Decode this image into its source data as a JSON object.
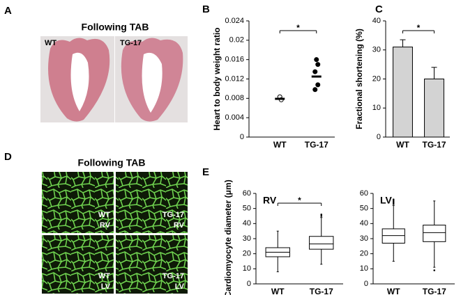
{
  "images": [
    {
      "panel": "A",
      "title": "Following TAB",
      "labels": [
        "WT",
        "TG-17"
      ]
    },
    {
      "panel": "D",
      "title": "Following TAB",
      "labels": [
        [
          "WT",
          "RV"
        ],
        [
          "TG-17",
          "RV"
        ],
        [
          "WT",
          "LV"
        ],
        [
          "TG-17",
          "LV"
        ]
      ]
    }
  ],
  "chart_data": [
    {
      "type": "dot",
      "panel": "B",
      "ylabel": "Heart to body weight ratio",
      "categories": [
        "WT",
        "TG-17"
      ],
      "points": [
        [
          0.0083,
          0.0077
        ],
        [
          0.016,
          0.015,
          0.0135,
          0.0108,
          0.0098
        ]
      ],
      "means": [
        0.0079,
        0.0125
      ],
      "fills": [
        "#ffffff",
        "#000000"
      ],
      "annotation": "*",
      "ylim": [
        0,
        0.024
      ],
      "yticks": [
        0,
        0.004,
        0.008,
        0.012,
        0.016,
        0.02,
        0.024
      ]
    },
    {
      "type": "bar",
      "panel": "C",
      "ylabel": "Fractional shortening (%)",
      "categories": [
        "WT",
        "TG-17"
      ],
      "values": [
        31,
        20
      ],
      "errors": [
        2.5,
        4
      ],
      "color": "#d3d3d3",
      "annotation": "*",
      "ylim": [
        0,
        40
      ],
      "yticks": [
        0,
        10,
        20,
        30,
        40
      ]
    },
    {
      "type": "box",
      "panel": "E",
      "ylabel": "Cardiomyocyte diameter (μm)",
      "title": "RV",
      "categories": [
        "WT",
        "TG-17"
      ],
      "boxes": [
        {
          "min": 8,
          "q1": 18,
          "median": 21,
          "q3": 24,
          "max": 35,
          "outliers": []
        },
        {
          "min": 13,
          "q1": 23,
          "median": 26.5,
          "q3": 31.5,
          "max": 44,
          "outliers": [
            45,
            46
          ]
        }
      ],
      "annotation": "*",
      "ylim": [
        0,
        60
      ],
      "yticks": [
        0,
        10,
        20,
        30,
        40,
        50,
        60
      ]
    },
    {
      "type": "box",
      "title": "LV",
      "categories": [
        "WT",
        "TG-17"
      ],
      "boxes": [
        {
          "min": 15,
          "q1": 27,
          "median": 32,
          "q3": 36.5,
          "max": 52,
          "outliers": [
            53,
            54,
            55,
            56
          ]
        },
        {
          "min": 11,
          "q1": 28,
          "median": 34,
          "q3": 39,
          "max": 55,
          "outliers": [
            9
          ]
        }
      ],
      "ylim": [
        0,
        60
      ],
      "yticks": [
        0,
        10,
        20,
        30,
        40,
        50,
        60
      ]
    }
  ]
}
